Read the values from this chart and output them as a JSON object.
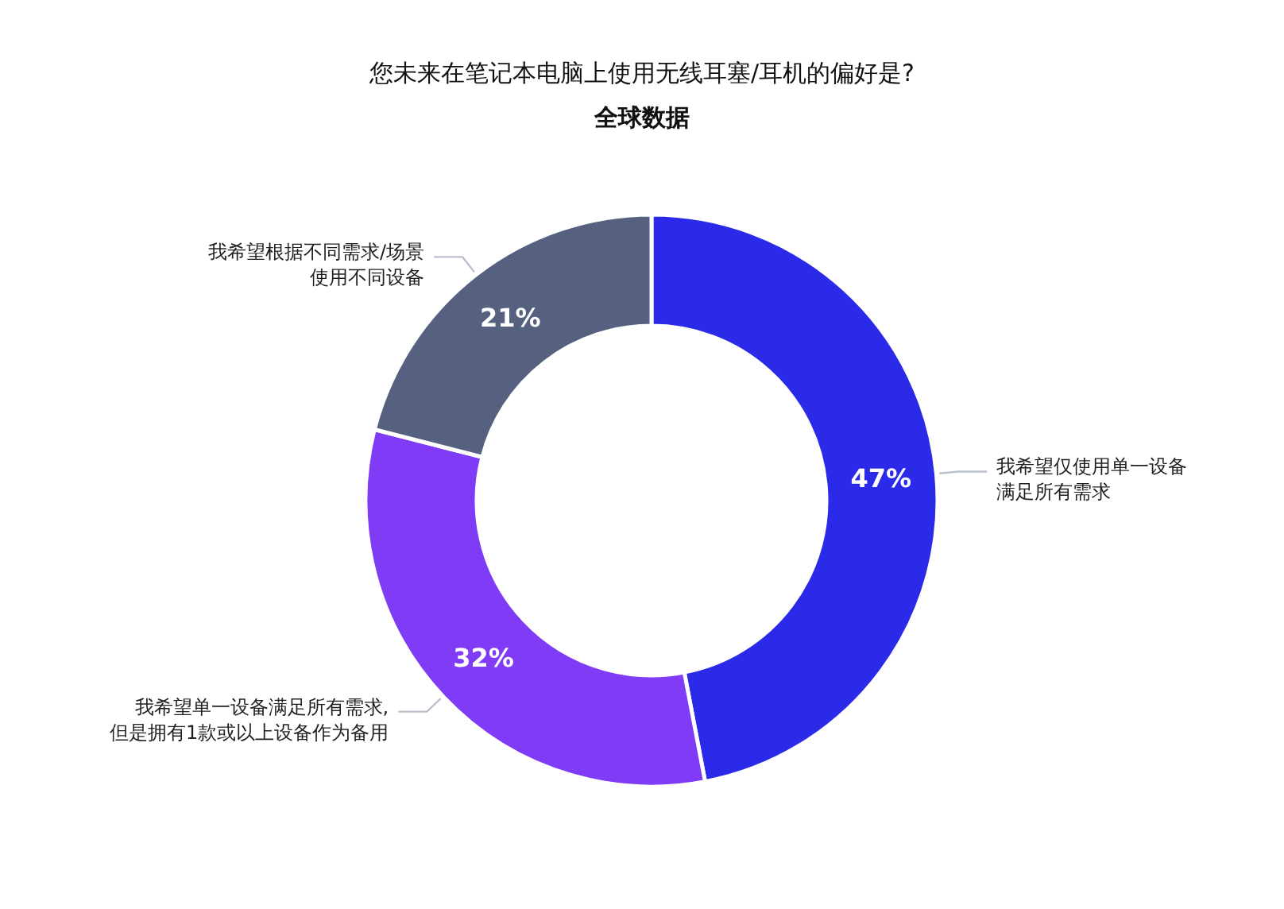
{
  "chart_data": {
    "type": "donut",
    "title": "您未来在笔记本电脑上使用无线耳塞/耳机的偏好是?",
    "subtitle": "全球数据",
    "categories": [
      "我希望仅使用单一设备满足所有需求",
      "我希望单一设备满足所有需求,但是拥有1款或以上设备作为备用",
      "我希望根据不同需求/场景使用不同设备"
    ],
    "values": [
      47,
      32,
      21
    ],
    "colors": [
      "#2a2ae8",
      "#7f3bf5",
      "#55617f"
    ],
    "value_labels": [
      "47%",
      "32%",
      "21%"
    ]
  }
}
